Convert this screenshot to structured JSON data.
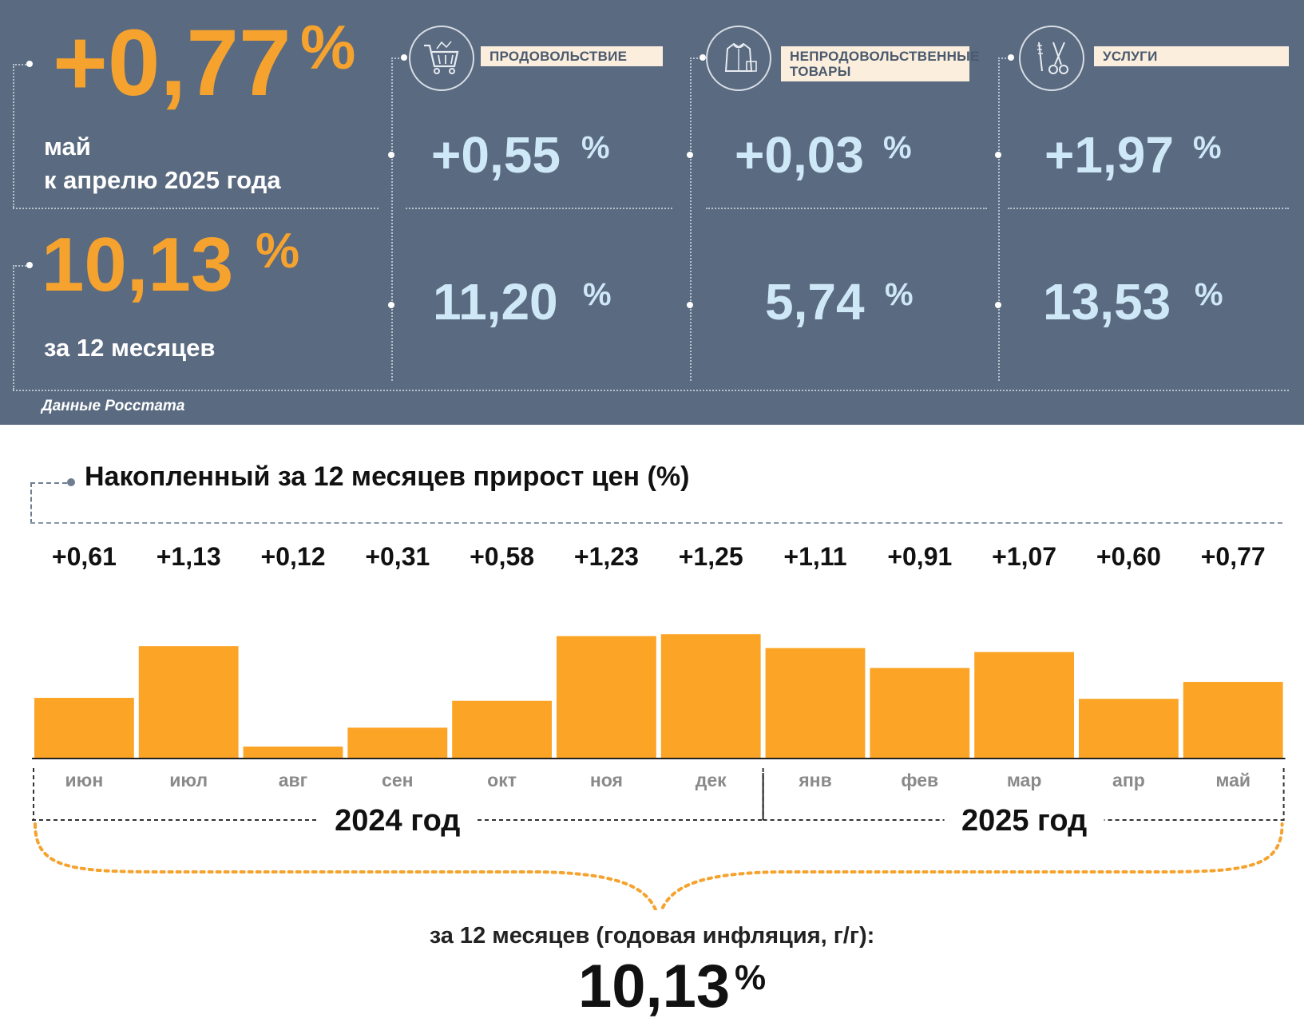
{
  "summary": {
    "monthly_value": "+0,77",
    "monthly_pct": "%",
    "monthly_label_line1": "май",
    "monthly_label_line2": "к апрелю 2025 года",
    "annual_value": "10,13",
    "annual_pct": "%",
    "annual_label": "за 12 месяцев",
    "source": "Данные Росстата"
  },
  "categories": [
    {
      "label": "ПРОДОВОЛЬСТВИЕ",
      "label2": "",
      "icon": "shopping-cart-icon",
      "monthly": "+0,55",
      "annual": "11,20",
      "pct": "%"
    },
    {
      "label": "НЕПРОДОВОЛЬСТВЕННЫЕ",
      "label2": "ТОВАРЫ",
      "icon": "clothing-icon",
      "monthly": "+0,03",
      "annual": "5,74",
      "pct": "%"
    },
    {
      "label": "УСЛУГИ",
      "label2": "",
      "icon": "scissors-icon",
      "monthly": "+1,97",
      "annual": "13,53",
      "pct": "%"
    }
  ],
  "colors": {
    "panel_bg": "#5a6a80",
    "accent_orange": "#f5a32e",
    "value_blue": "#cfe8f7",
    "bar": "#fba425",
    "label_bg": "#fbeedd"
  },
  "chart_data": {
    "type": "bar",
    "title": "Накопленный за 12 месяцев прирост цен (%)",
    "categories": [
      "июн",
      "июл",
      "авг",
      "сен",
      "окт",
      "ноя",
      "дек",
      "янв",
      "фев",
      "мар",
      "апр",
      "май"
    ],
    "values": [
      0.61,
      1.13,
      0.12,
      0.31,
      0.58,
      1.23,
      1.25,
      1.11,
      0.91,
      1.07,
      0.6,
      0.77
    ],
    "value_labels": [
      "+0,61",
      "+1,13",
      "+0,12",
      "+0,31",
      "+0,58",
      "+1,23",
      "+1,25",
      "+1,11",
      "+0,91",
      "+1,07",
      "+0,60",
      "+0,77"
    ],
    "year_groups": [
      {
        "label": "2024 год",
        "months": 7
      },
      {
        "label": "2025 год",
        "months": 5
      }
    ],
    "annual_caption": "за 12 месяцев (годовая инфляция, г/г):",
    "annual_value": "10,13",
    "annual_pct": "%",
    "ylim": [
      0,
      1.3
    ],
    "grid": false,
    "legend": "none"
  }
}
